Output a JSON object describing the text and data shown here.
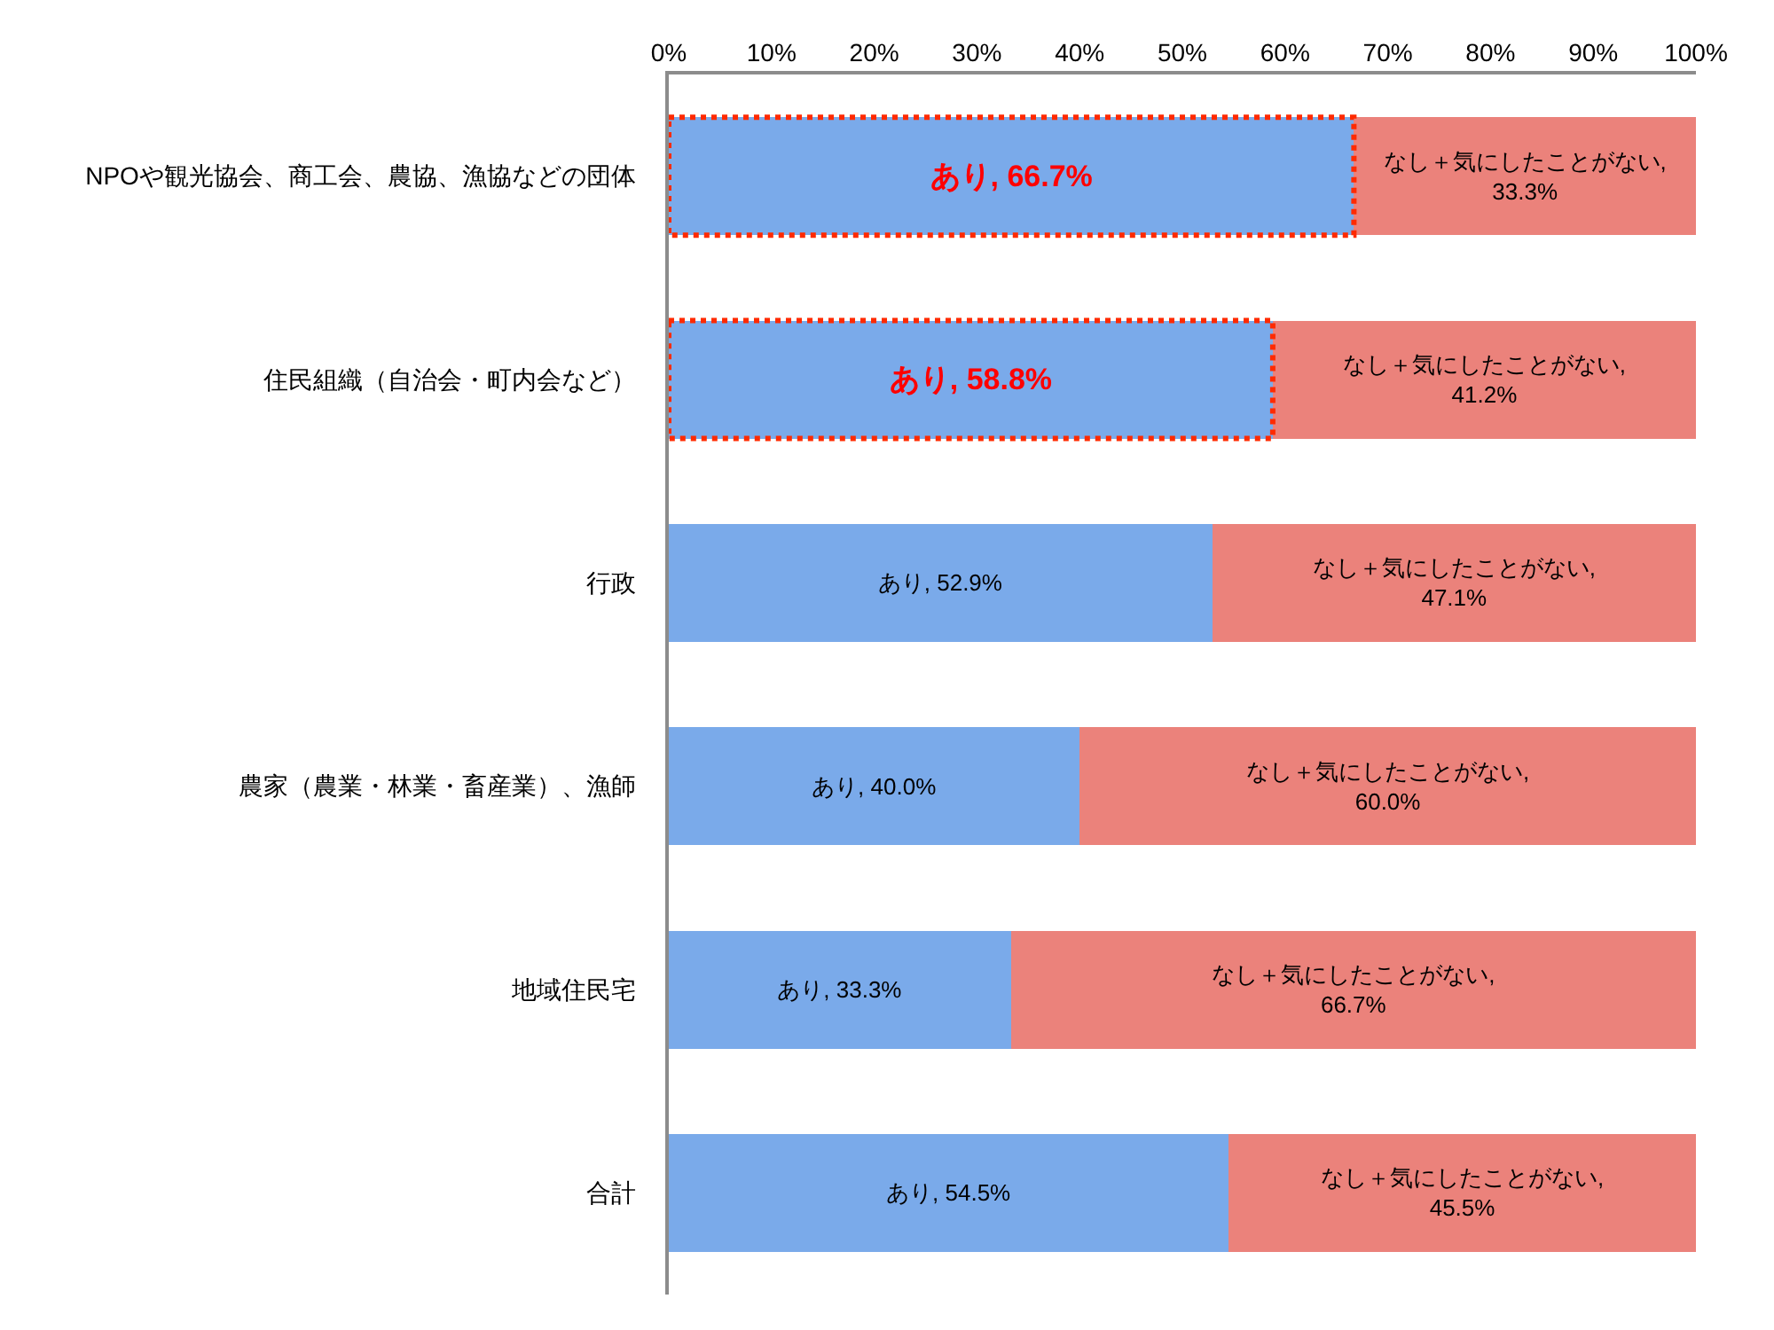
{
  "chart_data": {
    "type": "bar",
    "orientation": "horizontal",
    "stacked": true,
    "categories": [
      "NPOや観光協会、商工会、農協、漁協などの団体",
      "住民組織（自治会・町内会など）",
      "行政",
      "農家（農業・林業・畜産業）、漁師",
      "地域住民宅",
      "合計"
    ],
    "xlim": [
      0,
      100
    ],
    "xticks": [
      {
        "value": 0,
        "label": "0%"
      },
      {
        "value": 10,
        "label": "10%"
      },
      {
        "value": 20,
        "label": "20%"
      },
      {
        "value": 30,
        "label": "30%"
      },
      {
        "value": 40,
        "label": "40%"
      },
      {
        "value": 50,
        "label": "50%"
      },
      {
        "value": 60,
        "label": "60%"
      },
      {
        "value": 70,
        "label": "70%"
      },
      {
        "value": 80,
        "label": "80%"
      },
      {
        "value": 90,
        "label": "90%"
      },
      {
        "value": 100,
        "label": "100%"
      }
    ],
    "series": [
      {
        "color": "#7aaaea",
        "values": [
          66.7,
          58.8,
          52.9,
          40.0,
          33.3,
          54.5
        ],
        "value_labels": [
          "あり, 66.7%",
          "あり, 58.8%",
          "あり, 52.9%",
          "あり, 40.0%",
          "あり, 33.3%",
          "あり, 54.5%"
        ]
      },
      {
        "color": "#eb827b",
        "values": [
          33.3,
          41.2,
          47.1,
          60.0,
          66.7,
          45.5
        ],
        "value_labels": [
          "なし＋気にしたことがない,\n33.3%",
          "なし＋気にしたことがない,\n41.2%",
          "なし＋気にしたことがない,\n47.1%",
          "なし＋気にしたことがない,\n60.0%",
          "なし＋気にしたことがない,\n66.7%",
          "なし＋気にしたことがない,\n45.5%"
        ]
      }
    ],
    "grid": false
  }
}
